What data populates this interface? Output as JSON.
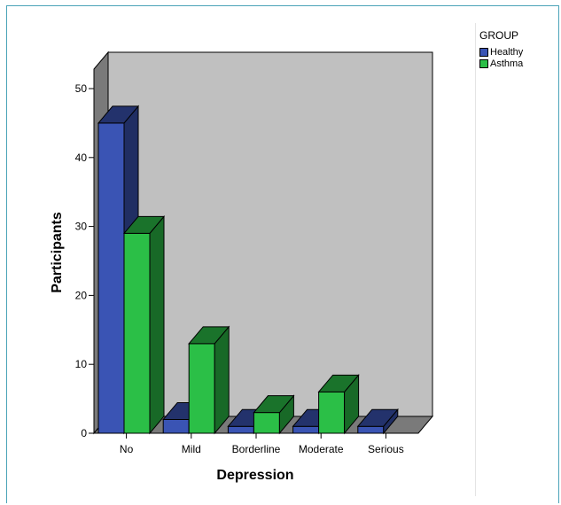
{
  "chart_data": {
    "type": "bar",
    "style": "3d-clustered",
    "categories": [
      "No",
      "Mild",
      "Borderline",
      "Moderate",
      "Serious"
    ],
    "series": [
      {
        "name": "Healthy",
        "values": [
          45,
          2,
          1,
          1,
          1
        ],
        "color": "#3a54b4"
      },
      {
        "name": "Asthma",
        "values": [
          29,
          13,
          3,
          6,
          0
        ],
        "color": "#2bbf47"
      }
    ],
    "xlabel": "Depression",
    "ylabel": "Participants",
    "ylim": [
      0,
      50
    ],
    "yticks": [
      0,
      10,
      20,
      30,
      40,
      50
    ],
    "legend_title": "GROUP",
    "legend_position": "top-right",
    "background_color": "#c0c0c0",
    "grid": false
  }
}
